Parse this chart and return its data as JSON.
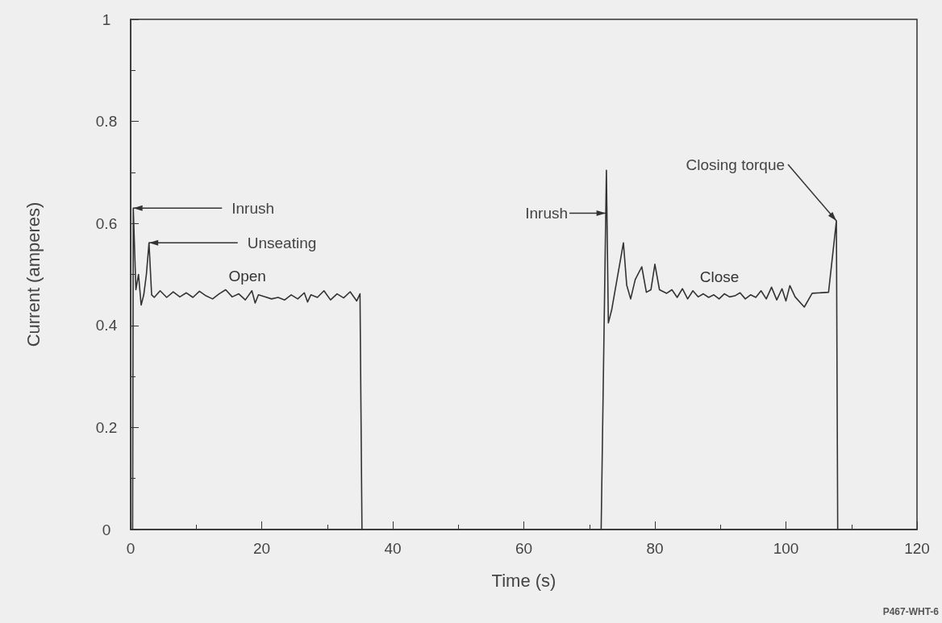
{
  "chart_data": {
    "type": "line",
    "xlabel": "Time (s)",
    "ylabel": "Current (amperes)",
    "xlim": [
      0,
      120
    ],
    "xticks": [
      0,
      20,
      40,
      60,
      80,
      100,
      120
    ],
    "ylim": [
      0,
      1
    ],
    "yticks": [
      0,
      0.2,
      0.4,
      0.6,
      0.8,
      1
    ],
    "grid": false,
    "legend": false,
    "marker": "none",
    "line_style": "solid",
    "series": [
      {
        "name": "Open",
        "color": "#333333",
        "x": [
          0.3,
          0.4,
          0.8,
          1.2,
          1.6,
          2,
          2.4,
          2.8,
          3.2,
          3.6,
          4.5,
          5.5,
          6.5,
          7.5,
          8.5,
          9.5,
          10.5,
          11.5,
          12.5,
          13.5,
          14.5,
          15.5,
          16.5,
          17.5,
          18.5,
          19,
          19.5,
          20.5,
          21.5,
          22.5,
          23.5,
          24.5,
          25.5,
          26.5,
          27,
          27.5,
          28.5,
          29.5,
          30.5,
          31.5,
          32.5,
          33.5,
          34.5,
          35,
          35.3
        ],
        "values": [
          0,
          0.63,
          0.47,
          0.5,
          0.44,
          0.46,
          0.5,
          0.562,
          0.46,
          0.455,
          0.468,
          0.455,
          0.466,
          0.456,
          0.464,
          0.455,
          0.467,
          0.458,
          0.452,
          0.462,
          0.47,
          0.456,
          0.462,
          0.45,
          0.468,
          0.444,
          0.46,
          0.456,
          0.452,
          0.455,
          0.45,
          0.46,
          0.452,
          0.464,
          0.446,
          0.46,
          0.455,
          0.468,
          0.45,
          0.462,
          0.454,
          0.466,
          0.448,
          0.462,
          0
        ]
      },
      {
        "name": "Close",
        "color": "#333333",
        "x": [
          71.8,
          72.6,
          72.9,
          73.4,
          75.2,
          75.7,
          76.3,
          77,
          78,
          78.7,
          79.4,
          80,
          80.7,
          81.8,
          82.6,
          83.4,
          84.2,
          85,
          85.8,
          86.6,
          87.4,
          88.2,
          89,
          89.8,
          90.6,
          91.4,
          92.2,
          93,
          93.8,
          94.6,
          95.4,
          96.2,
          97,
          97.8,
          98.6,
          99.4,
          100,
          100.6,
          101.4,
          102.8,
          104,
          106.5,
          107.7,
          107.9
        ],
        "values": [
          0,
          0.704,
          0.405,
          0.43,
          0.562,
          0.479,
          0.452,
          0.49,
          0.515,
          0.465,
          0.47,
          0.52,
          0.47,
          0.463,
          0.47,
          0.455,
          0.472,
          0.452,
          0.468,
          0.456,
          0.462,
          0.455,
          0.46,
          0.452,
          0.462,
          0.456,
          0.458,
          0.464,
          0.452,
          0.46,
          0.455,
          0.468,
          0.452,
          0.475,
          0.45,
          0.472,
          0.448,
          0.478,
          0.456,
          0.436,
          0.463,
          0.465,
          0.605,
          0
        ]
      }
    ],
    "annotations": [
      {
        "text": "Inrush",
        "x": 0.4,
        "y": 0.63
      },
      {
        "text": "Unseating",
        "x": 2.8,
        "y": 0.562
      },
      {
        "text": "Inrush",
        "x": 72.5,
        "y": 0.62
      },
      {
        "text": "Closing torque",
        "x": 107.7,
        "y": 0.605
      },
      "P467-WHT-6"
    ]
  }
}
